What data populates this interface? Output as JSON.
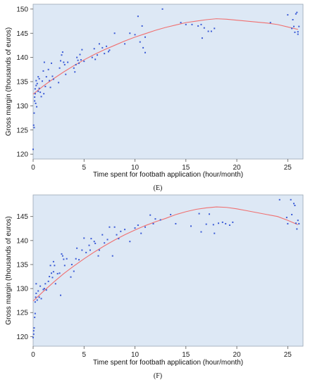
{
  "chart_data": [
    {
      "type": "scatter",
      "panel_label": "(E)",
      "xlabel": "Time spent for footbath application (hour/month)",
      "ylabel": "Gross margin (thousands of euros)",
      "xlim": [
        0,
        26.5
      ],
      "ylim": [
        119,
        151
      ],
      "xticks": [
        0,
        5,
        10,
        15,
        20,
        25
      ],
      "yticks": [
        120,
        125,
        130,
        135,
        140,
        145,
        150
      ],
      "grid": false,
      "background": "#dde8f5",
      "point_color": "#3b5bd6",
      "curve_color": "#f07070",
      "points": [
        [
          0.0,
          121.0
        ],
        [
          0.05,
          126.0
        ],
        [
          0.1,
          125.5
        ],
        [
          0.1,
          128.5
        ],
        [
          0.15,
          131.0
        ],
        [
          0.15,
          131.8
        ],
        [
          0.2,
          132.5
        ],
        [
          0.2,
          133.5
        ],
        [
          0.25,
          130.5
        ],
        [
          0.3,
          134.2
        ],
        [
          0.3,
          135.2
        ],
        [
          0.35,
          129.8
        ],
        [
          0.4,
          134.6
        ],
        [
          0.5,
          133.0
        ],
        [
          0.5,
          136.0
        ],
        [
          0.6,
          133.6
        ],
        [
          0.6,
          135.6
        ],
        [
          0.7,
          132.8
        ],
        [
          0.8,
          131.9
        ],
        [
          0.9,
          135.1
        ],
        [
          1.0,
          137.2
        ],
        [
          1.05,
          132.5
        ],
        [
          1.1,
          139.0
        ],
        [
          1.2,
          134.0
        ],
        [
          1.3,
          136.0
        ],
        [
          1.5,
          137.5
        ],
        [
          1.6,
          135.2
        ],
        [
          1.7,
          133.8
        ],
        [
          1.8,
          138.8
        ],
        [
          1.9,
          136.1
        ],
        [
          2.0,
          135.5
        ],
        [
          2.5,
          134.8
        ],
        [
          2.6,
          137.8
        ],
        [
          2.7,
          139.3
        ],
        [
          2.8,
          140.5
        ],
        [
          2.9,
          141.1
        ],
        [
          3.0,
          139.0
        ],
        [
          3.1,
          138.5
        ],
        [
          3.2,
          136.5
        ],
        [
          3.4,
          139.0
        ],
        [
          4.0,
          137.8
        ],
        [
          4.1,
          137.0
        ],
        [
          4.2,
          138.5
        ],
        [
          4.3,
          140.0
        ],
        [
          4.4,
          139.4
        ],
        [
          4.5,
          138.8
        ],
        [
          4.6,
          140.6
        ],
        [
          4.7,
          139.5
        ],
        [
          4.8,
          141.6
        ],
        [
          5.0,
          139.2
        ],
        [
          5.8,
          140.0
        ],
        [
          6.0,
          141.8
        ],
        [
          6.1,
          139.6
        ],
        [
          6.3,
          140.5
        ],
        [
          6.5,
          142.8
        ],
        [
          6.8,
          142.0
        ],
        [
          7.0,
          140.8
        ],
        [
          7.2,
          142.3
        ],
        [
          7.4,
          141.2
        ],
        [
          7.5,
          141.5
        ],
        [
          8.0,
          145.0
        ],
        [
          9.0,
          142.8
        ],
        [
          9.5,
          145.0
        ],
        [
          10.0,
          144.7
        ],
        [
          10.3,
          148.5
        ],
        [
          10.5,
          143.2
        ],
        [
          10.7,
          146.5
        ],
        [
          10.8,
          142.0
        ],
        [
          11.0,
          141.0
        ],
        [
          11.0,
          144.2
        ],
        [
          12.7,
          150.0
        ],
        [
          14.5,
          147.2
        ],
        [
          15.0,
          146.8
        ],
        [
          15.6,
          146.8
        ],
        [
          16.2,
          146.5
        ],
        [
          16.5,
          146.8
        ],
        [
          16.6,
          144.0
        ],
        [
          16.8,
          146.1
        ],
        [
          17.2,
          145.4
        ],
        [
          17.5,
          145.4
        ],
        [
          17.8,
          146.0
        ],
        [
          23.3,
          147.2
        ],
        [
          25.0,
          148.8
        ],
        [
          25.4,
          146.0
        ],
        [
          25.5,
          147.8
        ],
        [
          25.6,
          146.4
        ],
        [
          25.7,
          145.2
        ],
        [
          25.8,
          149.0
        ],
        [
          25.9,
          149.3
        ],
        [
          26.0,
          144.8
        ],
        [
          26.0,
          145.3
        ],
        [
          26.1,
          146.4
        ]
      ],
      "curve_x": [
        0,
        1,
        2,
        3,
        4,
        5,
        6,
        7,
        8,
        9,
        10,
        11,
        12,
        13,
        14,
        15,
        16,
        17,
        18,
        19,
        20,
        21,
        22,
        23,
        24,
        25,
        26
      ],
      "curve_y": [
        132.4,
        134.1,
        135.6,
        137.0,
        138.3,
        139.5,
        140.6,
        141.6,
        142.5,
        143.4,
        144.2,
        144.9,
        145.6,
        146.2,
        146.7,
        147.2,
        147.5,
        147.8,
        148.0,
        147.9,
        147.7,
        147.5,
        147.3,
        147.1,
        146.8,
        146.3,
        145.8
      ]
    },
    {
      "type": "scatter",
      "panel_label": "(F)",
      "xlabel": "Time spent for footbath application (hour/month)",
      "ylabel": "Gross margin (thousands of euros)",
      "xlim": [
        0,
        26.5
      ],
      "ylim": [
        118,
        149.5
      ],
      "xticks": [
        0,
        5,
        10,
        15,
        20,
        25
      ],
      "yticks": [
        120,
        125,
        130,
        135,
        140,
        145
      ],
      "grid": false,
      "background": "#dde8f5",
      "point_color": "#3b5bd6",
      "curve_color": "#f07070",
      "points": [
        [
          0.0,
          119.8
        ],
        [
          0.05,
          120.5
        ],
        [
          0.05,
          121.2
        ],
        [
          0.1,
          121.8
        ],
        [
          0.15,
          124.0
        ],
        [
          0.2,
          124.8
        ],
        [
          0.2,
          127.2
        ],
        [
          0.25,
          128.2
        ],
        [
          0.3,
          129.0
        ],
        [
          0.3,
          131.0
        ],
        [
          0.4,
          127.6
        ],
        [
          0.5,
          129.5
        ],
        [
          0.6,
          128.2
        ],
        [
          0.7,
          130.5
        ],
        [
          0.8,
          127.9
        ],
        [
          1.0,
          129.8
        ],
        [
          1.1,
          130.0
        ],
        [
          1.2,
          131.0
        ],
        [
          1.3,
          129.7
        ],
        [
          1.5,
          131.5
        ],
        [
          1.6,
          132.5
        ],
        [
          1.7,
          134.8
        ],
        [
          1.8,
          133.2
        ],
        [
          1.9,
          132.3
        ],
        [
          2.0,
          133.5
        ],
        [
          2.0,
          135.6
        ],
        [
          2.1,
          134.8
        ],
        [
          2.2,
          131.0
        ],
        [
          2.4,
          133.1
        ],
        [
          2.6,
          133.2
        ],
        [
          2.7,
          128.6
        ],
        [
          2.8,
          137.2
        ],
        [
          2.9,
          136.8
        ],
        [
          3.0,
          136.1
        ],
        [
          3.1,
          134.8
        ],
        [
          3.3,
          136.2
        ],
        [
          3.7,
          132.4
        ],
        [
          3.8,
          135.0
        ],
        [
          4.0,
          133.6
        ],
        [
          4.2,
          136.2
        ],
        [
          4.3,
          138.4
        ],
        [
          4.5,
          136.0
        ],
        [
          4.8,
          138.0
        ],
        [
          5.0,
          140.5
        ],
        [
          5.2,
          137.5
        ],
        [
          5.5,
          139.0
        ],
        [
          5.6,
          138.0
        ],
        [
          5.7,
          140.4
        ],
        [
          6.0,
          139.8
        ],
        [
          6.1,
          139.4
        ],
        [
          6.4,
          136.8
        ],
        [
          6.5,
          138.0
        ],
        [
          6.8,
          141.2
        ],
        [
          7.0,
          139.5
        ],
        [
          7.3,
          140.2
        ],
        [
          7.5,
          142.8
        ],
        [
          7.8,
          136.8
        ],
        [
          8.0,
          142.8
        ],
        [
          8.2,
          141.2
        ],
        [
          8.4,
          140.4
        ],
        [
          8.6,
          141.9
        ],
        [
          9.0,
          142.3
        ],
        [
          9.5,
          139.8
        ],
        [
          10.0,
          142.6
        ],
        [
          10.3,
          143.2
        ],
        [
          10.6,
          141.5
        ],
        [
          11.0,
          142.8
        ],
        [
          11.5,
          145.3
        ],
        [
          11.8,
          143.5
        ],
        [
          12.0,
          144.5
        ],
        [
          12.5,
          144.3
        ],
        [
          13.5,
          145.4
        ],
        [
          14.0,
          143.5
        ],
        [
          15.5,
          143.0
        ],
        [
          16.3,
          145.6
        ],
        [
          16.5,
          141.8
        ],
        [
          17.0,
          143.4
        ],
        [
          17.3,
          145.5
        ],
        [
          17.7,
          143.3
        ],
        [
          17.8,
          141.5
        ],
        [
          18.2,
          143.6
        ],
        [
          18.6,
          143.8
        ],
        [
          18.9,
          143.5
        ],
        [
          19.3,
          143.2
        ],
        [
          19.6,
          143.8
        ],
        [
          24.2,
          148.5
        ],
        [
          24.9,
          144.8
        ],
        [
          25.0,
          143.5
        ],
        [
          25.3,
          148.5
        ],
        [
          25.4,
          145.4
        ],
        [
          25.6,
          147.7
        ],
        [
          25.7,
          147.3
        ],
        [
          25.8,
          143.6
        ],
        [
          25.9,
          142.4
        ],
        [
          26.0,
          144.2
        ],
        [
          26.1,
          143.5
        ]
      ],
      "curve_x": [
        0,
        1,
        2,
        3,
        4,
        5,
        6,
        7,
        8,
        9,
        10,
        11,
        12,
        13,
        14,
        15,
        16,
        17,
        18,
        19,
        20,
        21,
        22,
        23,
        24,
        25,
        26
      ],
      "curve_y": [
        127.4,
        129.4,
        131.3,
        133.1,
        134.7,
        136.2,
        137.6,
        138.9,
        140.1,
        141.2,
        142.2,
        143.1,
        143.9,
        144.6,
        145.4,
        146.0,
        146.5,
        146.8,
        147.0,
        146.9,
        146.6,
        146.2,
        145.8,
        145.4,
        145.0,
        144.2,
        143.3
      ]
    }
  ]
}
